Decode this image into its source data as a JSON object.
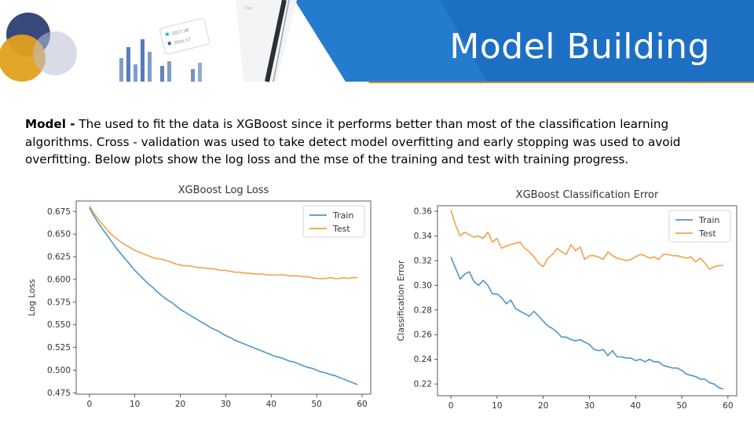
{
  "slide": {
    "title": "Model Building",
    "paragraph_label": "Model -",
    "paragraph_text": " The used to fit the data is XGBoost since it performs better than most of the classification learning algorithms. Cross - validation was used to take detect model overfitting and early stopping was used to avoid overfitting. Below plots show the log loss and the mse of the training and test with training progress.",
    "deco_label_1": "2017.18",
    "deco_label_2": "20nc.17",
    "deco_label_3": "Dav"
  },
  "colors": {
    "blue_band": "#1d6fc4",
    "gold_band": "#c9922a",
    "train": "#4f94c8",
    "test": "#f5a04a"
  },
  "chart_data": [
    {
      "type": "line",
      "title": "XGBoost Log Loss",
      "xlabel": "",
      "ylabel": "Log Loss",
      "xlim": [
        -2.9,
        61.9
      ],
      "ylim": [
        0.4735,
        0.6865
      ],
      "xticks": [
        0,
        10,
        20,
        30,
        40,
        50,
        60
      ],
      "yticks": [
        0.475,
        0.5,
        0.525,
        0.55,
        0.575,
        0.6,
        0.625,
        0.65,
        0.675
      ],
      "ytick_labels": [
        "0.475",
        "0.500",
        "0.525",
        "0.550",
        "0.575",
        "0.600",
        "0.625",
        "0.650",
        "0.675"
      ],
      "legend": "top-right",
      "grid": false,
      "series": [
        {
          "name": "Train",
          "color": "#4f94c8",
          "values": [
            0.679,
            0.67,
            0.662,
            0.655,
            0.648,
            0.641,
            0.634,
            0.628,
            0.622,
            0.616,
            0.61,
            0.605,
            0.6,
            0.595,
            0.591,
            0.586,
            0.582,
            0.578,
            0.575,
            0.571,
            0.567,
            0.564,
            0.561,
            0.558,
            0.555,
            0.552,
            0.549,
            0.546,
            0.544,
            0.541,
            0.538,
            0.536,
            0.533,
            0.531,
            0.529,
            0.527,
            0.525,
            0.523,
            0.521,
            0.519,
            0.517,
            0.515,
            0.514,
            0.512,
            0.51,
            0.509,
            0.507,
            0.505,
            0.503,
            0.502,
            0.5,
            0.498,
            0.497,
            0.495,
            0.494,
            0.492,
            0.49,
            0.488,
            0.486,
            0.484
          ]
        },
        {
          "name": "Test",
          "color": "#f5a04a",
          "values": [
            0.681,
            0.673,
            0.666,
            0.66,
            0.654,
            0.649,
            0.645,
            0.641,
            0.638,
            0.635,
            0.632,
            0.63,
            0.628,
            0.626,
            0.624,
            0.623,
            0.622,
            0.621,
            0.619,
            0.617,
            0.616,
            0.615,
            0.615,
            0.614,
            0.613,
            0.613,
            0.612,
            0.612,
            0.611,
            0.61,
            0.61,
            0.609,
            0.608,
            0.608,
            0.607,
            0.607,
            0.606,
            0.606,
            0.606,
            0.605,
            0.605,
            0.605,
            0.605,
            0.605,
            0.604,
            0.604,
            0.604,
            0.603,
            0.603,
            0.602,
            0.601,
            0.601,
            0.601,
            0.602,
            0.601,
            0.601,
            0.602,
            0.601,
            0.602,
            0.602
          ]
        }
      ]
    },
    {
      "type": "line",
      "title": "XGBoost Classification Error",
      "xlabel": "",
      "ylabel": "Classification Error",
      "xlim": [
        -2.9,
        61.9
      ],
      "ylim": [
        0.2105,
        0.3645
      ],
      "xticks": [
        0,
        10,
        20,
        30,
        40,
        50,
        60
      ],
      "yticks": [
        0.22,
        0.24,
        0.26,
        0.28,
        0.3,
        0.32,
        0.34,
        0.36
      ],
      "ytick_labels": [
        "0.22",
        "0.24",
        "0.26",
        "0.28",
        "0.30",
        "0.32",
        "0.34",
        "0.36"
      ],
      "legend": "top-right",
      "grid": false,
      "series": [
        {
          "name": "Train",
          "color": "#4f94c8",
          "values": [
            0.323,
            0.314,
            0.305,
            0.309,
            0.311,
            0.303,
            0.3,
            0.304,
            0.3,
            0.293,
            0.293,
            0.29,
            0.285,
            0.288,
            0.281,
            0.279,
            0.277,
            0.275,
            0.279,
            0.275,
            0.271,
            0.267,
            0.265,
            0.262,
            0.258,
            0.258,
            0.256,
            0.255,
            0.256,
            0.254,
            0.252,
            0.248,
            0.247,
            0.248,
            0.243,
            0.247,
            0.242,
            0.242,
            0.241,
            0.241,
            0.239,
            0.24,
            0.238,
            0.24,
            0.238,
            0.238,
            0.235,
            0.234,
            0.233,
            0.233,
            0.231,
            0.228,
            0.227,
            0.226,
            0.224,
            0.224,
            0.221,
            0.22,
            0.217,
            0.216
          ]
        },
        {
          "name": "Test",
          "color": "#f5a04a",
          "values": [
            0.361,
            0.349,
            0.34,
            0.343,
            0.341,
            0.339,
            0.34,
            0.338,
            0.343,
            0.335,
            0.338,
            0.33,
            0.332,
            0.333,
            0.334,
            0.335,
            0.33,
            0.327,
            0.323,
            0.318,
            0.315,
            0.322,
            0.325,
            0.33,
            0.327,
            0.325,
            0.333,
            0.328,
            0.331,
            0.321,
            0.324,
            0.324,
            0.323,
            0.321,
            0.327,
            0.324,
            0.322,
            0.321,
            0.32,
            0.321,
            0.323,
            0.325,
            0.324,
            0.322,
            0.323,
            0.321,
            0.325,
            0.325,
            0.324,
            0.324,
            0.323,
            0.322,
            0.323,
            0.319,
            0.322,
            0.318,
            0.313,
            0.315,
            0.316,
            0.316
          ]
        }
      ]
    }
  ]
}
